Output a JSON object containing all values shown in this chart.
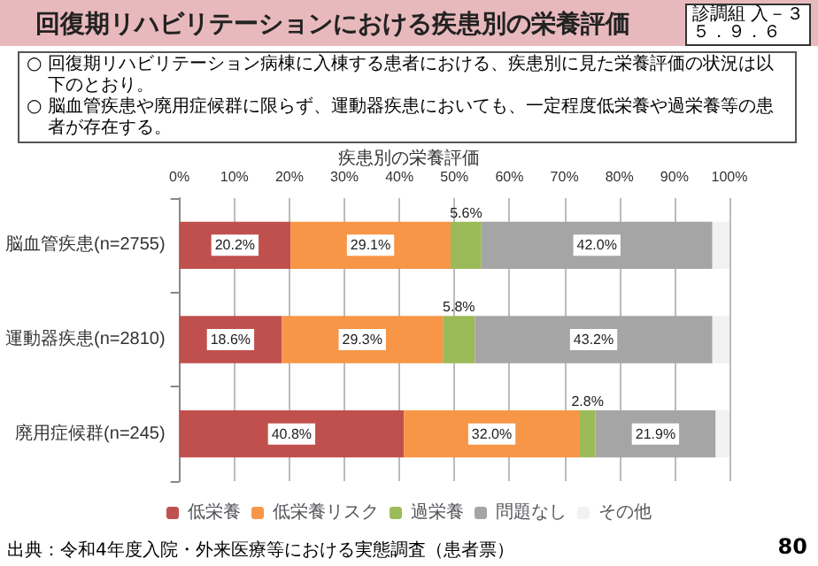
{
  "chart_data": {
    "type": "bar",
    "orientation": "horizontal",
    "stacked": true,
    "title": "回復期リハビリテーションにおける疾患別の栄養評価",
    "subtitle": "疾患別の栄養評価",
    "annotations": [
      "診調組 入－３",
      "５．９．６",
      "○ 回復期リハビリテーション病棟に入棟する患者における、疾患別に見た栄養評価の状況は以下のとおり。",
      "○ 脳血管疾患や廃用症候群に限らず、運動器疾患においても、一定程度低栄養や過栄養等の患者が存在する。",
      "出典：令和4年度入院・外来医療等における実態調査（患者票）",
      "80"
    ],
    "categories": [
      "脳血管疾患(n=2755)",
      "運動器疾患(n=2810)",
      "廃用症候群(n=245)"
    ],
    "series": [
      {
        "name": "低栄養",
        "color": "#c0504d",
        "values": [
          20.2,
          18.6,
          40.8
        ],
        "value_labels": [
          "20.2%",
          "18.6%",
          "40.8%"
        ]
      },
      {
        "name": "低栄養リスク",
        "color": "#f79646",
        "values": [
          29.1,
          29.3,
          32.0
        ],
        "value_labels": [
          "29.1%",
          "29.3%",
          "32.0%"
        ]
      },
      {
        "name": "過栄養",
        "color": "#9bbb59",
        "values": [
          5.6,
          5.8,
          2.8
        ],
        "value_labels": [
          "5.6%",
          "5.8%",
          "2.8%"
        ]
      },
      {
        "name": "問題なし",
        "color": "#a5a5a5",
        "values": [
          42.0,
          43.2,
          21.9
        ],
        "value_labels": [
          "42.0%",
          "43.2%",
          "21.9%"
        ]
      },
      {
        "name": "その他",
        "color": "#f2f2f2",
        "values": [
          3.1,
          3.1,
          2.5
        ]
      }
    ],
    "xlim": [
      0,
      100
    ],
    "xticks": [
      {
        "value": 0,
        "label": "0%"
      },
      {
        "value": 10,
        "label": "10%"
      },
      {
        "value": 20,
        "label": "20%"
      },
      {
        "value": 30,
        "label": "30%"
      },
      {
        "value": 40,
        "label": "40%"
      },
      {
        "value": 50,
        "label": "50%"
      },
      {
        "value": 60,
        "label": "60%"
      },
      {
        "value": 70,
        "label": "70%"
      },
      {
        "value": 80,
        "label": "80%"
      },
      {
        "value": 90,
        "label": "90%"
      },
      {
        "value": 100,
        "label": "100%"
      }
    ],
    "grid": "x",
    "legend": "bottom"
  }
}
